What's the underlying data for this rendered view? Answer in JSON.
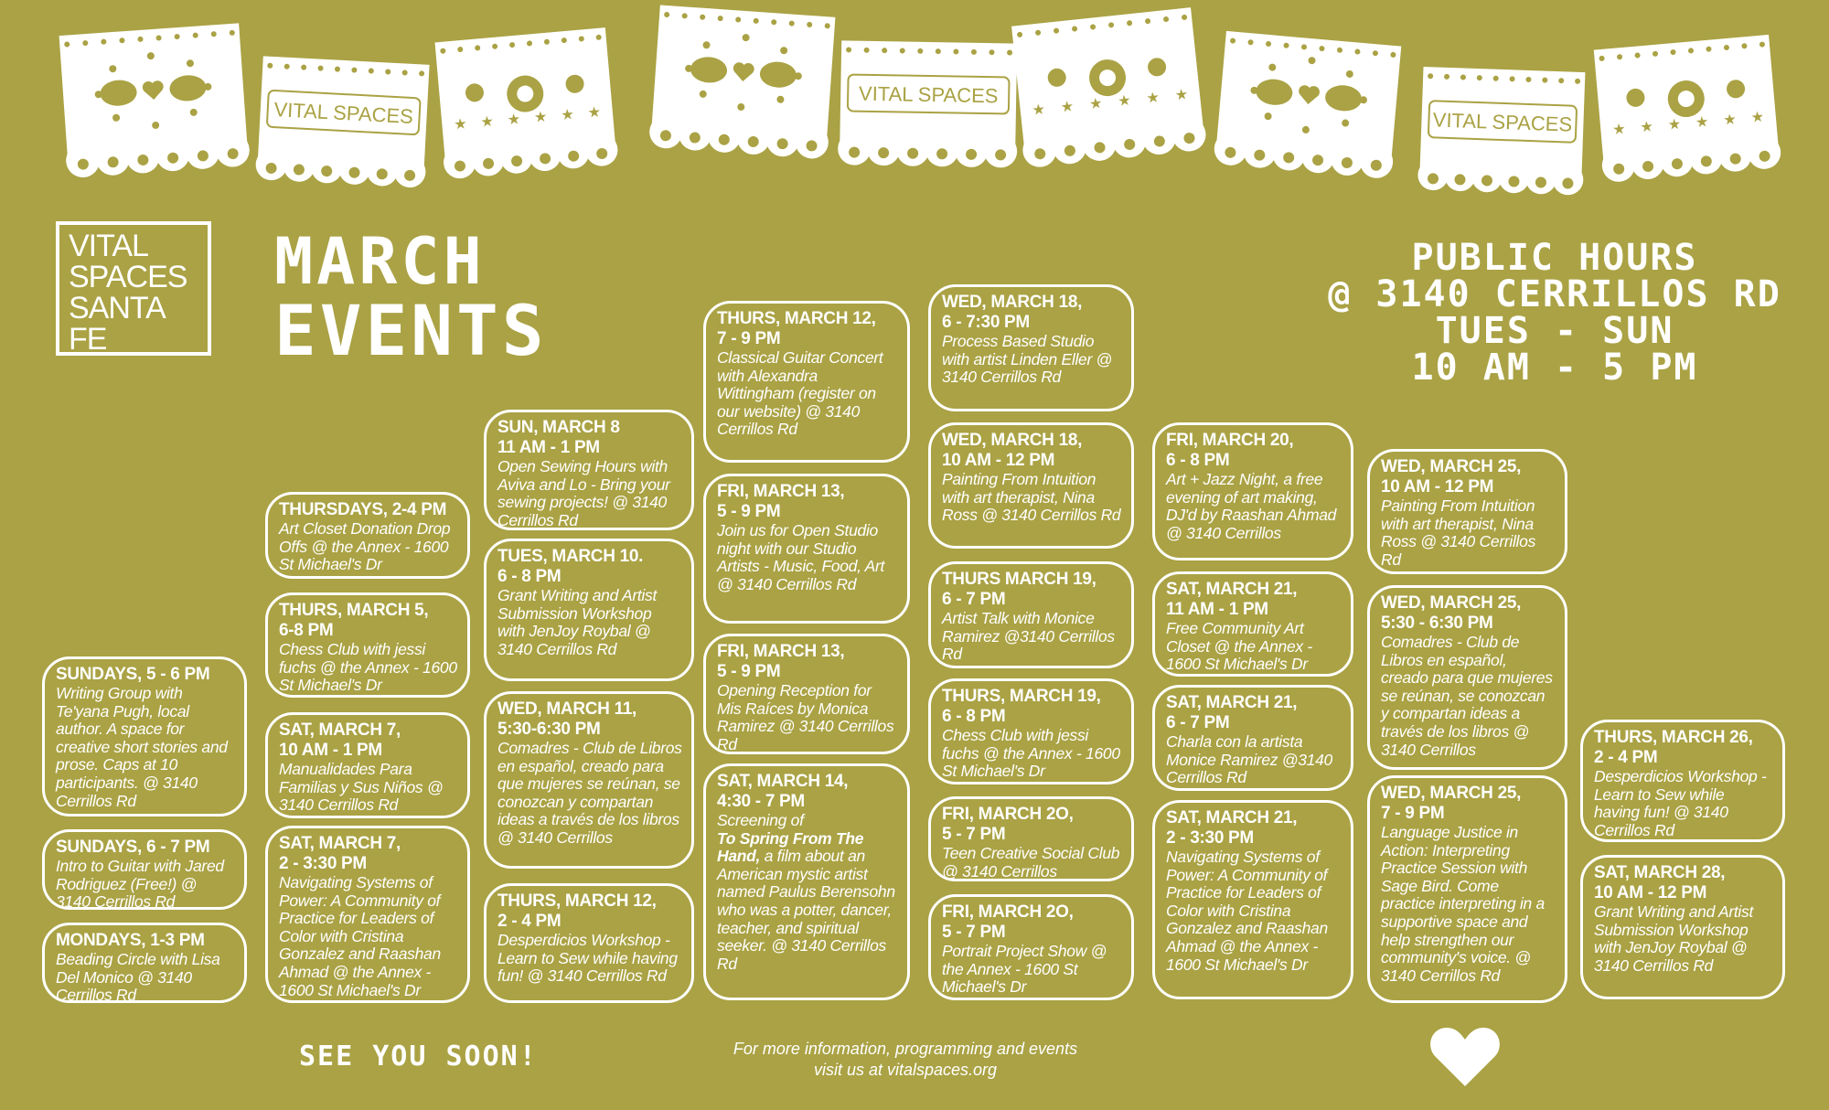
{
  "banner": {
    "flag_text": "VITAL SPACES",
    "flag_motifs": [
      "birds-heart",
      "vital-spaces",
      "flowers-stars",
      "birds-heart",
      "vital-spaces",
      "flowers-stars",
      "birds-heart",
      "vital-spaces",
      "flowers-stars"
    ]
  },
  "logo": {
    "text": "VITAL\nSPACES\nSANTA\nFE"
  },
  "title": {
    "line1": "MARCH",
    "line2": "EVENTS"
  },
  "public_hours": {
    "line1": "PUBLIC HOURS",
    "line2": "@ 3140 CERRILLOS RD",
    "line3": "TUES - SUN",
    "line4": "10 AM - 5 PM"
  },
  "events": [
    {
      "h1": "SUNDAYS, 5 - 6 PM",
      "h2": "",
      "desc": "Writing Group with Te'yana Pugh, local author. A space for creative short stories and prose. Caps at 10 participants. @ 3140 Cerrillos Rd"
    },
    {
      "h1": "SUNDAYS, 6 - 7 PM",
      "h2": "",
      "desc": "Intro to Guitar with Jared Rodriguez (Free!) @ 3140 Cerrillos Rd"
    },
    {
      "h1": "MONDAYS, 1-3 PM",
      "h2": "",
      "desc": "Beading Circle with Lisa Del Monico @ 3140 Cerrillos Rd"
    },
    {
      "h1": "THURSDAYS, 2-4 PM",
      "h2": "",
      "desc": "Art Closet Donation Drop Offs @ the Annex - 1600 St Michael's Dr"
    },
    {
      "h1": "THURS, MARCH 5,",
      "h2": "6-8 PM",
      "desc": "Chess Club with jessi fuchs @ the Annex - 1600 St Michael's Dr"
    },
    {
      "h1": "SAT, MARCH 7,",
      "h2": "10 AM - 1 PM",
      "desc": "Manualidades Para Familias y Sus Niños @ 3140 Cerrillos Rd"
    },
    {
      "h1": "SAT, MARCH 7,",
      "h2": "2 - 3:30 PM",
      "desc": "Navigating Systems of Power: A Community of Practice for Leaders of Color with Cristina Gonzalez and Raashan Ahmad @ the Annex - 1600 St Michael's Dr"
    },
    {
      "h1": "SUN, MARCH 8",
      "h2": "11 AM - 1 PM",
      "desc": "Open Sewing Hours with Aviva and Lo - Bring your sewing projects! @ 3140 Cerrillos Rd"
    },
    {
      "h1": "TUES, MARCH 10.",
      "h2": "6 - 8 PM",
      "desc": "Grant Writing and Artist Submission Workshop with JenJoy Roybal @ 3140 Cerrillos Rd"
    },
    {
      "h1": "WED, MARCH 11,",
      "h2": "5:30-6:30 PM",
      "desc": "Comadres  - Club de Libros en español, creado para que mujeres se reúnan, se conozcan y compartan ideas a través de los libros @ 3140 Cerrillos"
    },
    {
      "h1": "THURS, MARCH 12,",
      "h2": "2 - 4 PM",
      "desc": "Desperdicios Workshop - Learn to Sew while having fun! @ 3140 Cerrillos Rd"
    },
    {
      "h1": "THURS, MARCH 12,",
      "h2": "7 - 9 PM",
      "desc": "Classical Guitar Concert with Alexandra Wittingham (register on our website) @ 3140 Cerrillos Rd"
    },
    {
      "h1": "FRI, MARCH 13,",
      "h2": "5 - 9 PM",
      "desc": "Join us for Open Studio night with our Studio Artists - Music, Food, Art @ 3140 Cerrillos Rd"
    },
    {
      "h1": "FRI, MARCH 13,",
      "h2": "5 - 9 PM",
      "desc": "Opening Reception for Mis Raíces by Monica Ramirez @ 3140 Cerrillos Rd"
    },
    {
      "h1": "SAT, MARCH 14,",
      "h2": "4:30 - 7 PM",
      "desc_pre": "Screening of",
      "desc_bold": "To Spring From The Hand,",
      "desc": "a film about an American mystic artist named Paulus Berensohn who was a potter, dancer, teacher, and spiritual seeker. @ 3140 Cerrillos Rd"
    },
    {
      "h1": "WED, MARCH 18,",
      "h2": "6 - 7:30 PM",
      "desc": "Process Based Studio with artist Linden Eller @ 3140 Cerrillos Rd"
    },
    {
      "h1": "WED, MARCH 18,",
      "h2": "10 AM - 12 PM",
      "desc": "Painting From Intuition with art therapist, Nina Ross @ 3140 Cerrillos Rd"
    },
    {
      "h1": "THURS MARCH 19,",
      "h2": "6 - 7 PM",
      "desc": "Artist Talk with Monice Ramirez @3140 Cerrillos Rd"
    },
    {
      "h1": "THURS, MARCH 19,",
      "h2": "6 - 8 PM",
      "desc": "Chess Club with jessi fuchs @ the Annex - 1600 St Michael's Dr"
    },
    {
      "h1": "FRI, MARCH 2O,",
      "h2": "5 - 7 PM",
      "desc": "Teen Creative Social Club @ 3140 Cerrillos"
    },
    {
      "h1": "FRI, MARCH 2O,",
      "h2": "5 - 7 PM",
      "desc": "Portrait Project Show @ the Annex - 1600 St Michael's Dr"
    },
    {
      "h1": "FRI, MARCH 20,",
      "h2": "6 - 8 PM",
      "desc": "Art + Jazz Night, a free evening of art making, DJ'd by Raashan Ahmad @ 3140 Cerrillos"
    },
    {
      "h1": "SAT, MARCH 21,",
      "h2": "11 AM - 1 PM",
      "desc": "Free Community Art Closet @ the Annex - 1600 St Michael's Dr"
    },
    {
      "h1": "SAT,  MARCH 21,",
      "h2": "6 - 7 PM",
      "desc": "Charla con la artista Monice Ramirez @3140 Cerrillos Rd"
    },
    {
      "h1": "SAT, MARCH 21,",
      "h2": "2 - 3:30 PM",
      "desc": "Navigating Systems of Power: A Community of Practice for Leaders of Color with Cristina Gonzalez and Raashan Ahmad @ the Annex - 1600 St Michael's Dr"
    },
    {
      "h1": "WED, MARCH 25,",
      "h2": "10 AM - 12 PM",
      "desc": "Painting From Intuition with art therapist, Nina Ross @ 3140 Cerrillos Rd"
    },
    {
      "h1": "WED, MARCH 25,",
      "h2": "5:30 - 6:30 PM",
      "desc": "Comadres - Club de Libros en español, creado para que mujeres se reúnan, se conozcan y compartan ideas a través de los libros @ 3140 Cerrillos"
    },
    {
      "h1": "WED, MARCH 25,",
      "h2": "7 - 9 PM",
      "desc": "Language Justice in Action: Interpreting Practice Session with Sage Bird. Come practice interpreting in a supportive space and help strengthen our community's voice. @ 3140 Cerrillos Rd"
    },
    {
      "h1": "THURS, MARCH 26,",
      "h2": "2 - 4 PM",
      "desc": "Desperdicios Workshop - Learn to Sew while having fun! @ 3140 Cerrillos Rd"
    },
    {
      "h1": "SAT, MARCH 28,",
      "h2": "10 AM - 12 PM",
      "desc": "Grant Writing and Artist Submission Workshop with JenJoy Roybal @ 3140 Cerrillos Rd"
    }
  ],
  "footer": {
    "see_you": "SEE YOU SOON!",
    "info_line1": "For more information, programming and events",
    "info_line2": "visit us at vitalspaces.org"
  },
  "colors": {
    "background": "#AAA244",
    "foreground": "#FFFFFF"
  }
}
